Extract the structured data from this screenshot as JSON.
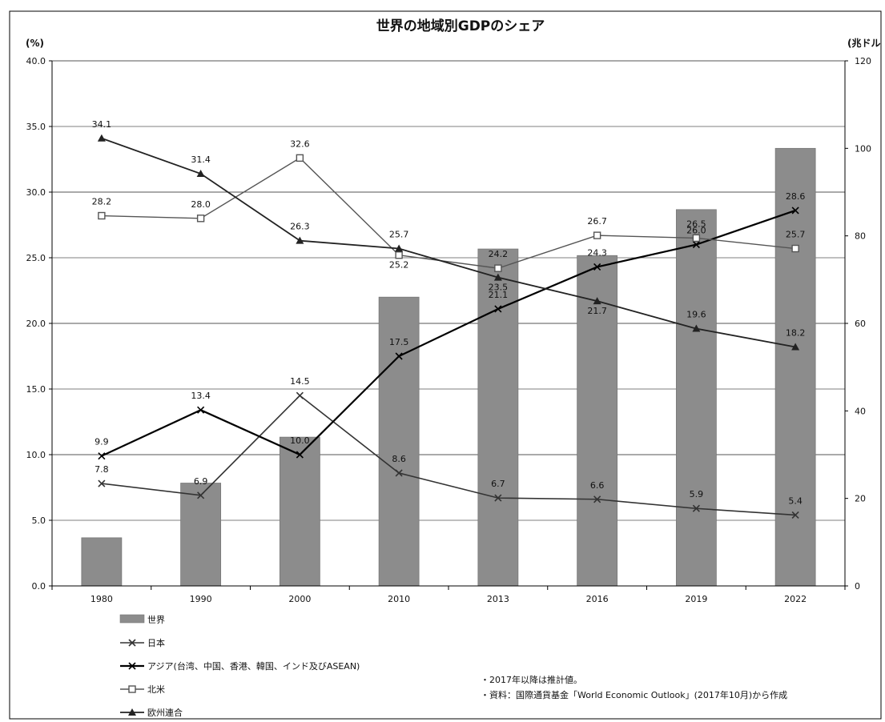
{
  "chart_data": {
    "type": "bar+line",
    "title": "世界の地域別GDPのシェア",
    "left_axis_unit": "(%)",
    "right_axis_unit": "(兆ドル",
    "left_ylim": [
      0,
      40
    ],
    "right_ylim": [
      0,
      120
    ],
    "left_ticks": [
      "0.0",
      "5.0",
      "10.0",
      "15.0",
      "20.0",
      "25.0",
      "30.0",
      "35.0",
      "40.0"
    ],
    "right_ticks": [
      "0",
      "20",
      "40",
      "60",
      "80",
      "100",
      "120"
    ],
    "categories": [
      "1980",
      "1990",
      "2000",
      "2010",
      "2013",
      "2016",
      "2019",
      "2022"
    ],
    "grid": true,
    "legend_position": "bottom-left",
    "bar_series": {
      "name": "世界",
      "axis": "right",
      "color": "#8c8c8c",
      "values": [
        11,
        23.5,
        34,
        66,
        77,
        75.5,
        86,
        100
      ]
    },
    "line_series": [
      {
        "name": "日本",
        "axis": "left",
        "color": "#333333",
        "values": [
          7.8,
          6.9,
          14.5,
          8.6,
          6.7,
          6.6,
          5.9,
          5.4
        ],
        "labels": [
          "7.8",
          "6.9",
          "14.5",
          "8.6",
          "6.7",
          "6.6",
          "5.9",
          "5.4"
        ]
      },
      {
        "name": "アジア(台湾、中国、香港、韓国、インド及びASEAN)",
        "axis": "left",
        "color": "#000000",
        "values": [
          9.9,
          13.4,
          10.0,
          17.5,
          21.1,
          24.3,
          26.0,
          28.6
        ],
        "labels": [
          "9.9",
          "13.4",
          "10.0",
          "17.5",
          "21.1",
          "24.3",
          "26.0",
          "28.6"
        ]
      },
      {
        "name": "北米",
        "axis": "left",
        "color": "#555555",
        "values": [
          28.2,
          28.0,
          32.6,
          25.2,
          24.2,
          26.7,
          26.5,
          25.7
        ],
        "labels": [
          "28.2",
          "28.0",
          "32.6",
          "25.2",
          "24.2",
          "26.7",
          "26.5",
          "25.7"
        ]
      },
      {
        "name": "欧州連合",
        "axis": "left",
        "color": "#222222",
        "values": [
          34.1,
          31.4,
          26.3,
          25.7,
          23.5,
          21.7,
          19.6,
          18.2
        ],
        "labels": [
          "34.1",
          "31.4",
          "26.3",
          "25.7",
          "23.5",
          "21.7",
          "19.6",
          "18.2"
        ]
      }
    ],
    "notes": [
      "・2017年以降は推計値。",
      "・資料：国際通貨基金「World Economic Outlook」(2017年10月)から作成"
    ]
  }
}
